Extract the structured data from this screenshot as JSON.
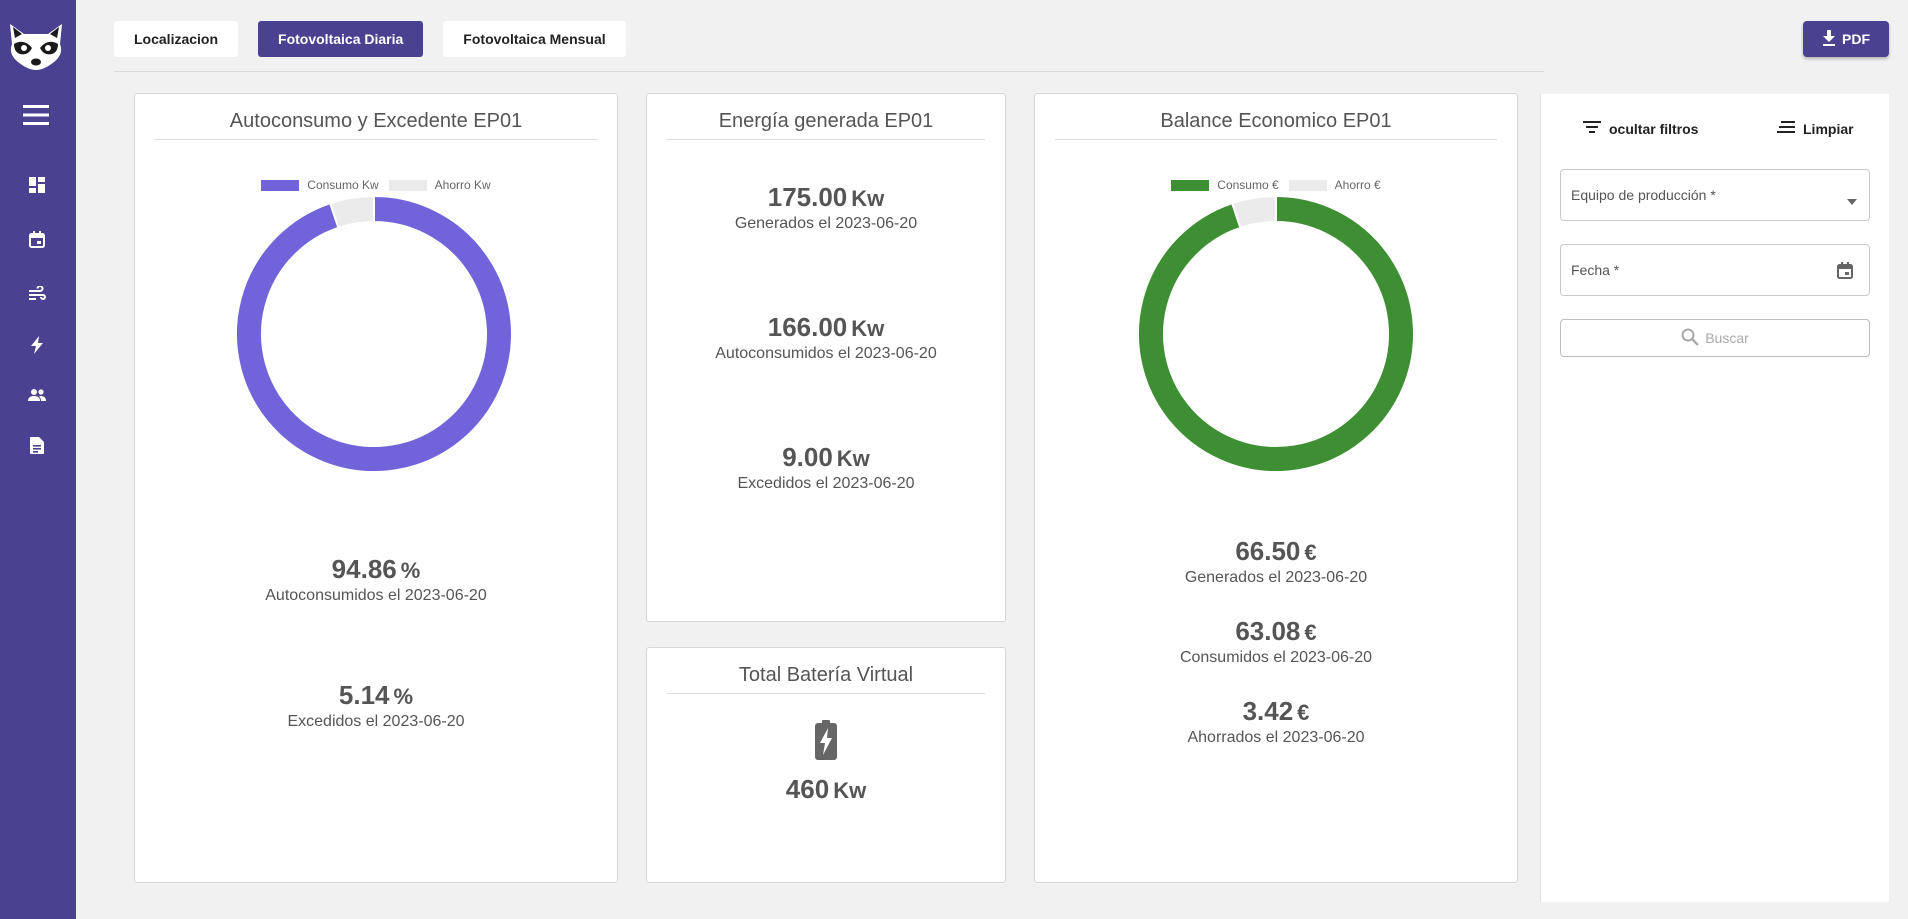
{
  "nav": {
    "logo": "raccoon-logo",
    "icons": [
      "menu-icon",
      "dashboard-icon",
      "calendar-icon",
      "wind-icon",
      "bolt-icon",
      "users-icon",
      "document-icon"
    ]
  },
  "tabs": [
    "Localizacion",
    "Fotovoltaica Diaria",
    "Fotovoltaica Mensual"
  ],
  "active_tab": "Fotovoltaica Diaria",
  "pdf_label": "PDF",
  "colors": {
    "brand": "#4a4191",
    "consumo_kw": "#7164db",
    "consumo_eur": "#3e8e33",
    "ahorro": "#ebebeb"
  },
  "autoconsumo": {
    "title": "Autoconsumo y Excedente EP01",
    "legend": [
      "Consumo Kw",
      "Ahorro Kw"
    ],
    "stat1": {
      "value": "94.86",
      "unit": "%",
      "label": "Autoconsumidos el 2023-06-20"
    },
    "stat2": {
      "value": "5.14",
      "unit": "%",
      "label": "Excedidos el 2023-06-20"
    }
  },
  "energia": {
    "title": "Energía generada EP01",
    "stat1": {
      "value": "175.00",
      "unit": "Kw",
      "label": "Generados el 2023-06-20"
    },
    "stat2": {
      "value": "166.00",
      "unit": "Kw",
      "label": "Autoconsumidos el 2023-06-20"
    },
    "stat3": {
      "value": "9.00",
      "unit": "Kw",
      "label": "Excedidos el 2023-06-20"
    }
  },
  "bateria": {
    "title": "Total Batería Virtual",
    "value": "460",
    "unit": "Kw"
  },
  "balance": {
    "title": "Balance Economico EP01",
    "legend": [
      "Consumo €",
      "Ahorro €"
    ],
    "stat1": {
      "value": "66.50",
      "unit": "€",
      "label": "Generados el 2023-06-20"
    },
    "stat2": {
      "value": "63.08",
      "unit": "€",
      "label": "Consumidos el 2023-06-20"
    },
    "stat3": {
      "value": "3.42",
      "unit": "€",
      "label": "Ahorrados el 2023-06-20"
    }
  },
  "filters": {
    "hide_label": "ocultar filtros",
    "clear_label": "Limpiar",
    "equipo_placeholder": "Equipo de producción *",
    "fecha_placeholder": "Fecha *",
    "search_label": "Buscar"
  },
  "chart_data": [
    {
      "type": "pie",
      "variant": "donut",
      "title": "Autoconsumo y Excedente EP01",
      "labels": [
        "Consumo Kw",
        "Ahorro Kw"
      ],
      "values": [
        94.86,
        5.14
      ],
      "colors": [
        "#7164db",
        "#ebebeb"
      ],
      "legend": "top"
    },
    {
      "type": "pie",
      "variant": "donut",
      "title": "Balance Economico EP01",
      "labels": [
        "Consumo €",
        "Ahorro €"
      ],
      "values": [
        63.08,
        3.42
      ],
      "colors": [
        "#3e8e33",
        "#ebebeb"
      ],
      "legend": "top"
    }
  ]
}
